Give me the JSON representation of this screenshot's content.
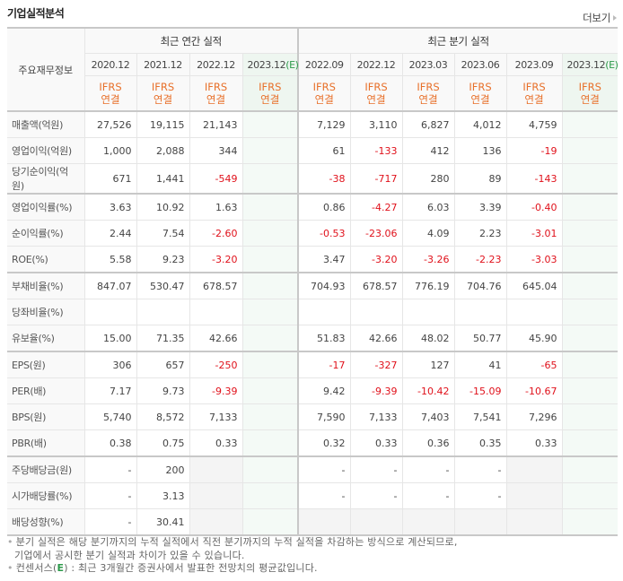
{
  "header": {
    "title": "기업실적분석",
    "more_label": "더보기"
  },
  "table": {
    "corner_label": "주요재무정보",
    "groups": [
      {
        "label": "최근 연간 실적"
      },
      {
        "label": "최근 분기 실적"
      }
    ],
    "periods": [
      {
        "label": "2020.12",
        "est": ""
      },
      {
        "label": "2021.12",
        "est": ""
      },
      {
        "label": "2022.12",
        "est": ""
      },
      {
        "label": "2023.12",
        "est": "(E)"
      },
      {
        "label": "2022.09",
        "est": ""
      },
      {
        "label": "2022.12",
        "est": ""
      },
      {
        "label": "2023.03",
        "est": ""
      },
      {
        "label": "2023.06",
        "est": ""
      },
      {
        "label": "2023.09",
        "est": ""
      },
      {
        "label": "2023.12",
        "est": "(E)"
      }
    ],
    "basis": {
      "line1": "IFRS",
      "line2": "연결"
    },
    "rows": [
      {
        "label": "매출액(억원)",
        "values": [
          "27,526",
          "19,115",
          "21,143",
          "",
          "7,129",
          "3,110",
          "6,827",
          "4,012",
          "4,759",
          ""
        ]
      },
      {
        "label": "영업이익(억원)",
        "values": [
          "1,000",
          "2,088",
          "344",
          "",
          "61",
          "-133",
          "412",
          "136",
          "-19",
          ""
        ]
      },
      {
        "label": "당기순이익(억원)",
        "values": [
          "671",
          "1,441",
          "-549",
          "",
          "-38",
          "-717",
          "280",
          "89",
          "-143",
          ""
        ]
      },
      {
        "label": "영업이익률(%)",
        "values": [
          "3.63",
          "10.92",
          "1.63",
          "",
          "0.86",
          "-4.27",
          "6.03",
          "3.39",
          "-0.40",
          ""
        ]
      },
      {
        "label": "순이익률(%)",
        "values": [
          "2.44",
          "7.54",
          "-2.60",
          "",
          "-0.53",
          "-23.06",
          "4.09",
          "2.23",
          "-3.01",
          ""
        ]
      },
      {
        "label": "ROE(%)",
        "values": [
          "5.58",
          "9.23",
          "-3.20",
          "",
          "3.47",
          "-3.20",
          "-3.26",
          "-2.23",
          "-3.03",
          ""
        ]
      },
      {
        "label": "부채비율(%)",
        "values": [
          "847.07",
          "530.47",
          "678.57",
          "",
          "704.93",
          "678.57",
          "776.19",
          "704.76",
          "645.04",
          ""
        ]
      },
      {
        "label": "당좌비율(%)",
        "values": [
          "",
          "",
          "",
          "",
          "",
          "",
          "",
          "",
          "",
          ""
        ]
      },
      {
        "label": "유보율(%)",
        "values": [
          "15.00",
          "71.35",
          "42.66",
          "",
          "51.83",
          "42.66",
          "48.02",
          "50.77",
          "45.90",
          ""
        ]
      },
      {
        "label": "EPS(원)",
        "values": [
          "306",
          "657",
          "-250",
          "",
          "-17",
          "-327",
          "127",
          "41",
          "-65",
          ""
        ]
      },
      {
        "label": "PER(배)",
        "values": [
          "7.17",
          "9.73",
          "-9.39",
          "",
          "9.42",
          "-9.39",
          "-10.42",
          "-15.09",
          "-10.67",
          ""
        ]
      },
      {
        "label": "BPS(원)",
        "values": [
          "5,740",
          "8,572",
          "7,133",
          "",
          "7,590",
          "7,133",
          "7,403",
          "7,541",
          "7,296",
          ""
        ]
      },
      {
        "label": "PBR(배)",
        "values": [
          "0.38",
          "0.75",
          "0.33",
          "",
          "0.32",
          "0.33",
          "0.36",
          "0.35",
          "0.33",
          ""
        ]
      },
      {
        "label": "주당배당금(원)",
        "values": [
          "-",
          "200",
          "",
          "",
          "-",
          "-",
          "-",
          "-",
          "",
          ""
        ]
      },
      {
        "label": "시가배당률(%)",
        "values": [
          "-",
          "3.13",
          "",
          "",
          "-",
          "-",
          "-",
          "-",
          "",
          ""
        ]
      },
      {
        "label": "배당성향(%)",
        "values": [
          "-",
          "30.41",
          "",
          "",
          "",
          "",
          "",
          "",
          "",
          ""
        ]
      }
    ]
  },
  "notes": {
    "line1": "분기 실적은 해당 분기까지의 누적 실적에서 직전 분기까지의 누적 실적을 차감하는 방식으로 계산되므로,",
    "line2": "기업에서 공시한 분기 실적과 차이가 있을 수 있습니다.",
    "line3_prefix": "컨센서스(",
    "line3_e": "E",
    "line3_suffix": ") : 최근 3개월간 증권사에서 발표한 전망치의 평균값입니다."
  },
  "colors": {
    "accent_orange": "#e8702a",
    "negative_red": "#e0111b",
    "estimate_green": "#2c9a4a",
    "estimate_bg": "#f4faf6"
  }
}
